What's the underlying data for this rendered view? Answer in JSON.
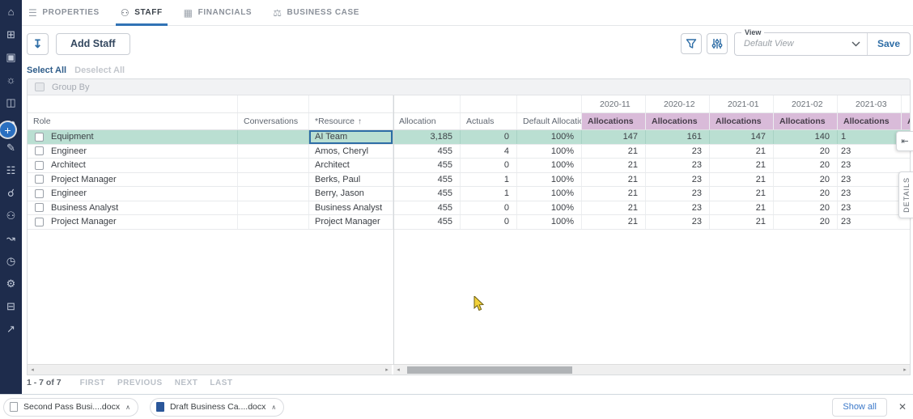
{
  "colors": {
    "sidebar_bg": "#1e2c4c",
    "accent_blue": "#2e6da6",
    "tab_underline": "#3173b5",
    "selected_row_green": "#badfd2",
    "month_header_pink": "#d9bbd9",
    "word_icon_blue": "#2b579a"
  },
  "sidebar": {
    "icons": [
      {
        "name": "home-icon",
        "glyph": "⌂"
      },
      {
        "name": "apps-icon",
        "glyph": "⊞"
      },
      {
        "name": "dashboard-icon",
        "glyph": "▣"
      },
      {
        "name": "ideas-icon",
        "glyph": "☼"
      },
      {
        "name": "chart-icon",
        "glyph": "◫"
      },
      {
        "name": "work-icon",
        "glyph": "⚒"
      },
      {
        "name": "edit-icon",
        "glyph": "✎"
      },
      {
        "name": "hierarchy-icon",
        "glyph": "☷"
      },
      {
        "name": "person-search-icon",
        "glyph": "☌"
      },
      {
        "name": "people-icon",
        "glyph": "⚇"
      },
      {
        "name": "person-flow-icon",
        "glyph": "↝"
      },
      {
        "name": "time-icon",
        "glyph": "◷"
      },
      {
        "name": "settings-icon",
        "glyph": "⚙"
      },
      {
        "name": "print-icon",
        "glyph": "⊟"
      },
      {
        "name": "open-in-new-icon",
        "glyph": "↗"
      }
    ]
  },
  "tabs": [
    {
      "label": "PROPERTIES",
      "icon_name": "properties-icon",
      "glyph": "☰",
      "active": false
    },
    {
      "label": "STAFF",
      "icon_name": "staff-icon",
      "glyph": "⚇",
      "active": true
    },
    {
      "label": "FINANCIALS",
      "icon_name": "financials-icon",
      "glyph": "▦",
      "active": false
    },
    {
      "label": "BUSINESS CASE",
      "icon_name": "business-case-icon",
      "glyph": "⚖",
      "active": false
    }
  ],
  "toolbar": {
    "download_icon": "↧",
    "add_staff_label": "Add Staff",
    "view_label": "View",
    "view_value": "Default View",
    "save_label": "Save"
  },
  "selection_bar": {
    "select_all": "Select All",
    "deselect_all": "Deselect All"
  },
  "group_bar": {
    "label": "Group By"
  },
  "grid": {
    "columns": [
      "Role",
      "Conversations",
      "*Resource",
      "Allocation",
      "Actuals",
      "Default Allocation"
    ],
    "sort_arrow": "↑",
    "months": [
      "2020-11",
      "2020-12",
      "2021-01",
      "2021-02",
      "2021-03"
    ],
    "month_subheader": "Allocations",
    "rows": [
      {
        "role": "Equipment",
        "conversations": "",
        "resource": "AI Team",
        "allocation": "3,185",
        "actuals": "0",
        "default_allocation": "100%",
        "allocations": [
          "147",
          "161",
          "147",
          "140"
        ],
        "next_partial": "1",
        "selected": true
      },
      {
        "role": "Engineer",
        "conversations": "",
        "resource": "Amos, Cheryl",
        "allocation": "455",
        "actuals": "4",
        "default_allocation": "100%",
        "allocations": [
          "21",
          "23",
          "21",
          "20"
        ],
        "next_partial": "23",
        "selected": false
      },
      {
        "role": "Architect",
        "conversations": "",
        "resource": "Architect",
        "allocation": "455",
        "actuals": "0",
        "default_allocation": "100%",
        "allocations": [
          "21",
          "23",
          "21",
          "20"
        ],
        "next_partial": "23",
        "selected": false
      },
      {
        "role": "Project Manager",
        "conversations": "",
        "resource": "Berks, Paul",
        "allocation": "455",
        "actuals": "1",
        "default_allocation": "100%",
        "allocations": [
          "21",
          "23",
          "21",
          "20"
        ],
        "next_partial": "23",
        "selected": false
      },
      {
        "role": "Engineer",
        "conversations": "",
        "resource": "Berry, Jason",
        "allocation": "455",
        "actuals": "1",
        "default_allocation": "100%",
        "allocations": [
          "21",
          "23",
          "21",
          "20"
        ],
        "next_partial": "23",
        "selected": false
      },
      {
        "role": "Business Analyst",
        "conversations": "",
        "resource": "Business Analyst",
        "allocation": "455",
        "actuals": "0",
        "default_allocation": "100%",
        "allocations": [
          "21",
          "23",
          "21",
          "20"
        ],
        "next_partial": "23",
        "selected": false
      },
      {
        "role": "Project Manager",
        "conversations": "",
        "resource": "Project Manager",
        "allocation": "455",
        "actuals": "0",
        "default_allocation": "100%",
        "allocations": [
          "21",
          "23",
          "21",
          "20"
        ],
        "next_partial": "23",
        "selected": false
      }
    ]
  },
  "pagination": {
    "range": "1 - 7 of 7",
    "links": [
      "FIRST",
      "PREVIOUS",
      "NEXT",
      "LAST"
    ]
  },
  "details_panel": {
    "collapse_icon": "⇤",
    "tab_label": "DETAILS"
  },
  "downloads_bar": {
    "items": [
      {
        "label": "Second Pass Busi....docx",
        "icon": "doc-file-icon"
      },
      {
        "label": "Draft Business Ca....docx",
        "icon": "word-file-icon"
      }
    ],
    "show_all": "Show all",
    "close_icon": "✕"
  }
}
